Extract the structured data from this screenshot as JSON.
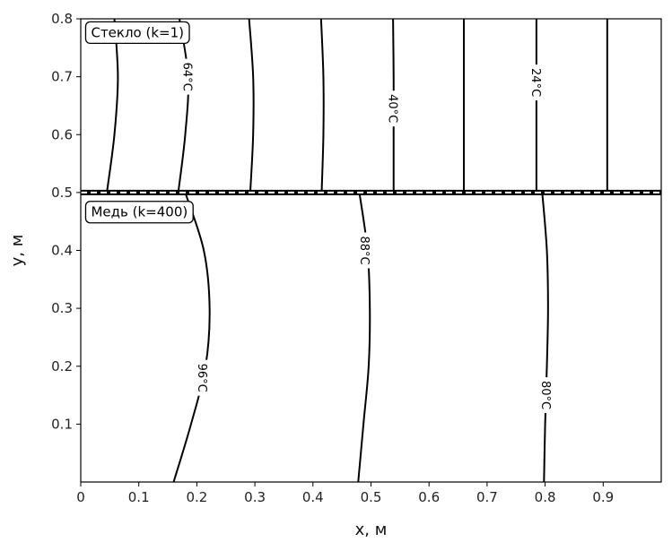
{
  "chart_data": {
    "type": "contour",
    "xlabel": "x, м",
    "ylabel": "y, м",
    "xlim": [
      0,
      1.0
    ],
    "ylim": [
      0,
      0.8
    ],
    "x_ticks": [
      "0",
      "0.1",
      "0.2",
      "0.3",
      "0.4",
      "0.5",
      "0.6",
      "0.7",
      "0.8",
      "0.9"
    ],
    "x_tick_values": [
      0,
      0.1,
      0.2,
      0.3,
      0.4,
      0.5,
      0.6,
      0.7,
      0.8,
      0.9
    ],
    "y_ticks": [
      "0.1",
      "0.2",
      "0.3",
      "0.4",
      "0.5",
      "0.6",
      "0.7",
      "0.8"
    ],
    "y_tick_values": [
      0.1,
      0.2,
      0.3,
      0.4,
      0.5,
      0.6,
      0.7,
      0.8
    ],
    "grid": false,
    "interface": {
      "y": 0.5,
      "style": "dashed"
    },
    "regions": [
      {
        "label": "Стекло (k=1)",
        "x": 0.01,
        "y": 0.77
      },
      {
        "label": "Медь (k=400)",
        "x": 0.01,
        "y": 0.46
      }
    ],
    "contours": [
      {
        "points": [
          [
            0.16,
            0.0
          ],
          [
            0.19,
            0.1
          ],
          [
            0.215,
            0.2
          ],
          [
            0.222,
            0.3
          ],
          [
            0.212,
            0.4
          ],
          [
            0.18,
            0.5
          ]
        ],
        "label": "96°C",
        "label_pos": [
          0.21,
          0.18
        ]
      },
      {
        "points": [
          [
            0.478,
            0.0
          ],
          [
            0.487,
            0.1
          ],
          [
            0.496,
            0.2
          ],
          [
            0.498,
            0.3
          ],
          [
            0.494,
            0.4
          ],
          [
            0.48,
            0.5
          ]
        ],
        "label": "88°C",
        "label_pos": [
          0.49,
          0.4
        ]
      },
      {
        "points": [
          [
            0.798,
            0.0
          ],
          [
            0.8,
            0.1
          ],
          [
            0.803,
            0.2
          ],
          [
            0.805,
            0.3
          ],
          [
            0.803,
            0.4
          ],
          [
            0.795,
            0.5
          ]
        ],
        "label": "80°C",
        "label_pos": [
          0.802,
          0.15
        ]
      },
      {
        "points": [
          [
            0.045,
            0.5
          ],
          [
            0.058,
            0.6
          ],
          [
            0.064,
            0.7
          ],
          [
            0.058,
            0.8
          ]
        ],
        "label": "",
        "label_pos": null
      },
      {
        "points": [
          [
            0.168,
            0.5
          ],
          [
            0.18,
            0.6
          ],
          [
            0.185,
            0.7
          ],
          [
            0.17,
            0.8
          ]
        ],
        "label": "64°C",
        "label_pos": [
          0.185,
          0.7
        ]
      },
      {
        "points": [
          [
            0.292,
            0.5
          ],
          [
            0.297,
            0.6
          ],
          [
            0.297,
            0.7
          ],
          [
            0.29,
            0.8
          ]
        ],
        "label": "",
        "label_pos": null
      },
      {
        "points": [
          [
            0.415,
            0.5
          ],
          [
            0.418,
            0.6
          ],
          [
            0.418,
            0.7
          ],
          [
            0.414,
            0.8
          ]
        ],
        "label": "",
        "label_pos": null
      },
      {
        "points": [
          [
            0.539,
            0.5
          ],
          [
            0.539,
            0.6
          ],
          [
            0.539,
            0.7
          ],
          [
            0.538,
            0.8
          ]
        ],
        "label": "40°C",
        "label_pos": [
          0.539,
          0.645
        ]
      },
      {
        "points": [
          [
            0.66,
            0.5
          ],
          [
            0.66,
            0.6
          ],
          [
            0.66,
            0.7
          ],
          [
            0.66,
            0.8
          ]
        ],
        "label": "",
        "label_pos": null
      },
      {
        "points": [
          [
            0.785,
            0.5
          ],
          [
            0.785,
            0.6
          ],
          [
            0.785,
            0.7
          ],
          [
            0.785,
            0.8
          ]
        ],
        "label": "24°C",
        "label_pos": [
          0.785,
          0.69
        ]
      },
      {
        "points": [
          [
            0.907,
            0.5
          ],
          [
            0.907,
            0.6
          ],
          [
            0.907,
            0.7
          ],
          [
            0.907,
            0.8
          ]
        ],
        "label": "",
        "label_pos": null
      }
    ]
  }
}
